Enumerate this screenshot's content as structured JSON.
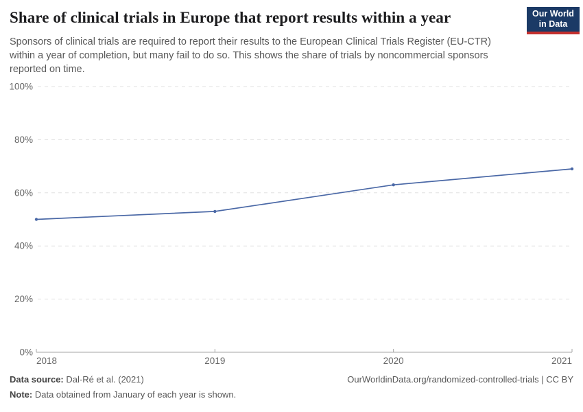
{
  "header": {
    "title": "Share of clinical trials in Europe that report results within a year",
    "subtitle": "Sponsors of clinical trials are required to report their results to the European Clinical Trials Register (EU-CTR) within a year of completion, but many fail to do so. This shows the share of trials by noncommercial sponsors reported on time."
  },
  "logo": {
    "line1": "Our World",
    "line2": "in Data",
    "bg_color": "#1b3a66",
    "bar_color": "#c4302e"
  },
  "chart_data": {
    "type": "line",
    "title": "Share of clinical trials in Europe that report results within a year",
    "x": [
      2018,
      2019,
      2020,
      2021
    ],
    "x_tick_labels": [
      "2018",
      "2019",
      "2020",
      "2021"
    ],
    "values": [
      50,
      53,
      63,
      69
    ],
    "series_name": "Share of trials by noncommercial sponsors reported on time",
    "ylim": [
      0,
      100
    ],
    "y_ticks": [
      0,
      20,
      40,
      60,
      80,
      100
    ],
    "y_tick_suffix": "%",
    "xlabel": "",
    "ylabel": "",
    "grid": "horizontal-dashed",
    "legend": "none",
    "line_color": "#4a68a6",
    "grid_color": "#e0e0e0",
    "axis_color": "#a5a5a5",
    "tick_label_color": "#666666"
  },
  "footer": {
    "data_source_label": "Data source:",
    "data_source_value": "Dal-Ré et al. (2021)",
    "link_text": "OurWorldinData.org/randomized-controlled-trials | CC BY",
    "note_label": "Note:",
    "note_value": "Data obtained from January of each year is shown."
  }
}
